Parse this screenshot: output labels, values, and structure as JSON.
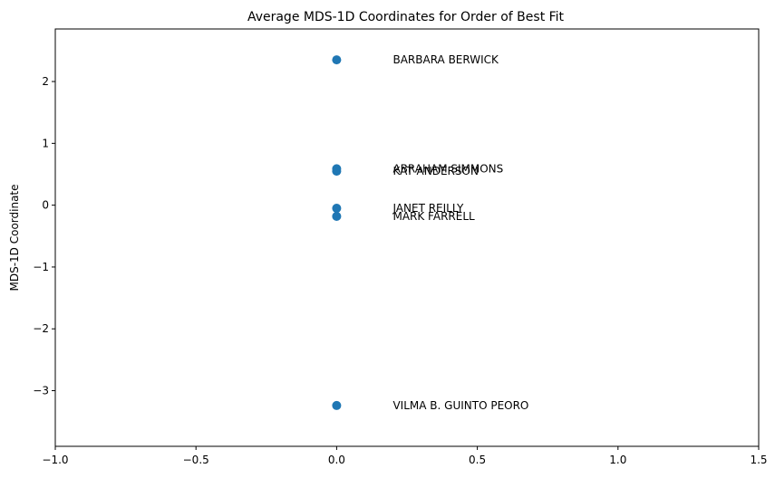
{
  "chart_data": {
    "type": "scatter",
    "title": "Average MDS-1D Coordinates for Order of Best Fit",
    "xlabel": "",
    "ylabel": "MDS-1D Coordinate",
    "xlim": [
      -1.0,
      1.5
    ],
    "ylim": [
      -3.9,
      2.85
    ],
    "xticks": [
      -1.0,
      -0.5,
      0.0,
      0.5,
      1.0,
      1.5
    ],
    "xtick_labels": [
      "−1.0",
      "−0.5",
      "0.0",
      "0.5",
      "1.0",
      "1.5"
    ],
    "yticks": [
      -3,
      -2,
      -1,
      0,
      1,
      2
    ],
    "ytick_labels": [
      "−3",
      "−2",
      "−1",
      "0",
      "1",
      "2"
    ],
    "grid": false,
    "point_color": "#1f77b4",
    "label_offset_x": 0.2,
    "points": [
      {
        "name": "BARBARA BERWICK",
        "x": 0.0,
        "y": 2.35
      },
      {
        "name": "ABRAHAM SIMMONS",
        "x": 0.0,
        "y": 0.59
      },
      {
        "name": "KAT ANDERSON",
        "x": 0.0,
        "y": 0.55
      },
      {
        "name": "JANET REILLY",
        "x": 0.0,
        "y": -0.05
      },
      {
        "name": "MARK FARRELL",
        "x": 0.0,
        "y": -0.18
      },
      {
        "name": "VILMA B. GUINTO PEORO",
        "x": 0.0,
        "y": -3.24
      }
    ]
  }
}
